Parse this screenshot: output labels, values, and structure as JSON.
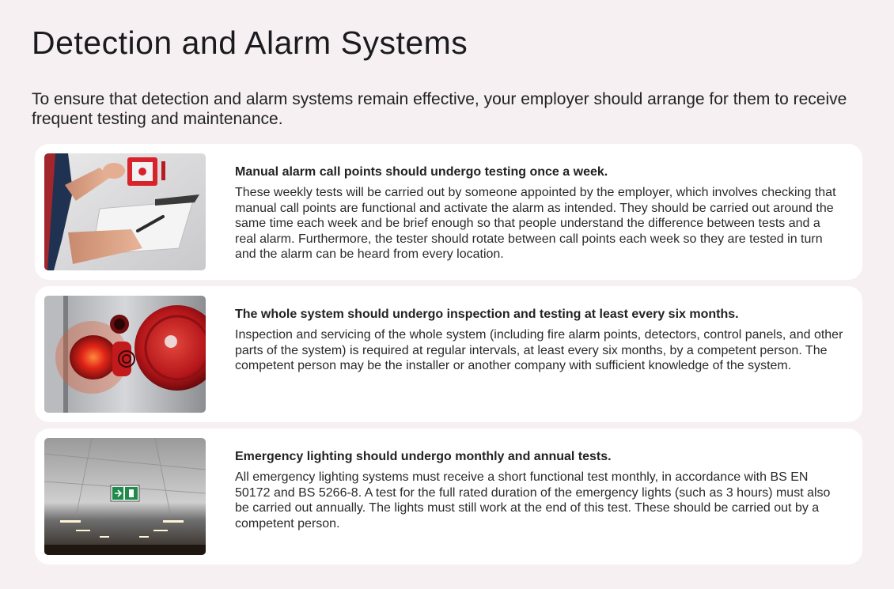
{
  "page": {
    "title": "Detection and Alarm Systems",
    "intro": "To ensure that detection and alarm systems remain effective, your employer should arrange for them to receive frequent testing and maintenance."
  },
  "cards": [
    {
      "heading": "Manual alarm call points should undergo testing once a week.",
      "body": "These weekly tests will be carried out by someone appointed by the employer, which involves checking that manual call points are functional and activate the alarm as intended. They should be carried out around the same time each week and be brief enough so that people understand the difference between tests and a real alarm. Furthermore, the tester should rotate between call points each week so they are tested in turn and the alarm can be heard from every location.",
      "image": "manual-call-point-photo"
    },
    {
      "heading": "The whole system should undergo inspection and testing at least every six months.",
      "body": "Inspection and servicing of the whole system (including fire alarm points, detectors, control panels, and other parts of the system) is required at regular intervals, at least every six months, by a competent person. The competent person may be the installer or another company with sufficient knowledge of the system.",
      "image": "fire-alarm-bell-photo"
    },
    {
      "heading": "Emergency lighting should undergo monthly and annual tests.",
      "body": "All emergency lighting systems must receive a short functional test monthly, in accordance with BS EN 50172 and BS 5266-8. A test for the full rated duration of the emergency lights (such as 3 hours) must also be carried out annually. The lights must still work at the end of this test. These should be carried out by a competent person.",
      "image": "emergency-exit-sign-photo"
    }
  ],
  "colors": {
    "background": "#f6f0f2",
    "card": "#ffffff",
    "alarm_red": "#d8232a"
  }
}
